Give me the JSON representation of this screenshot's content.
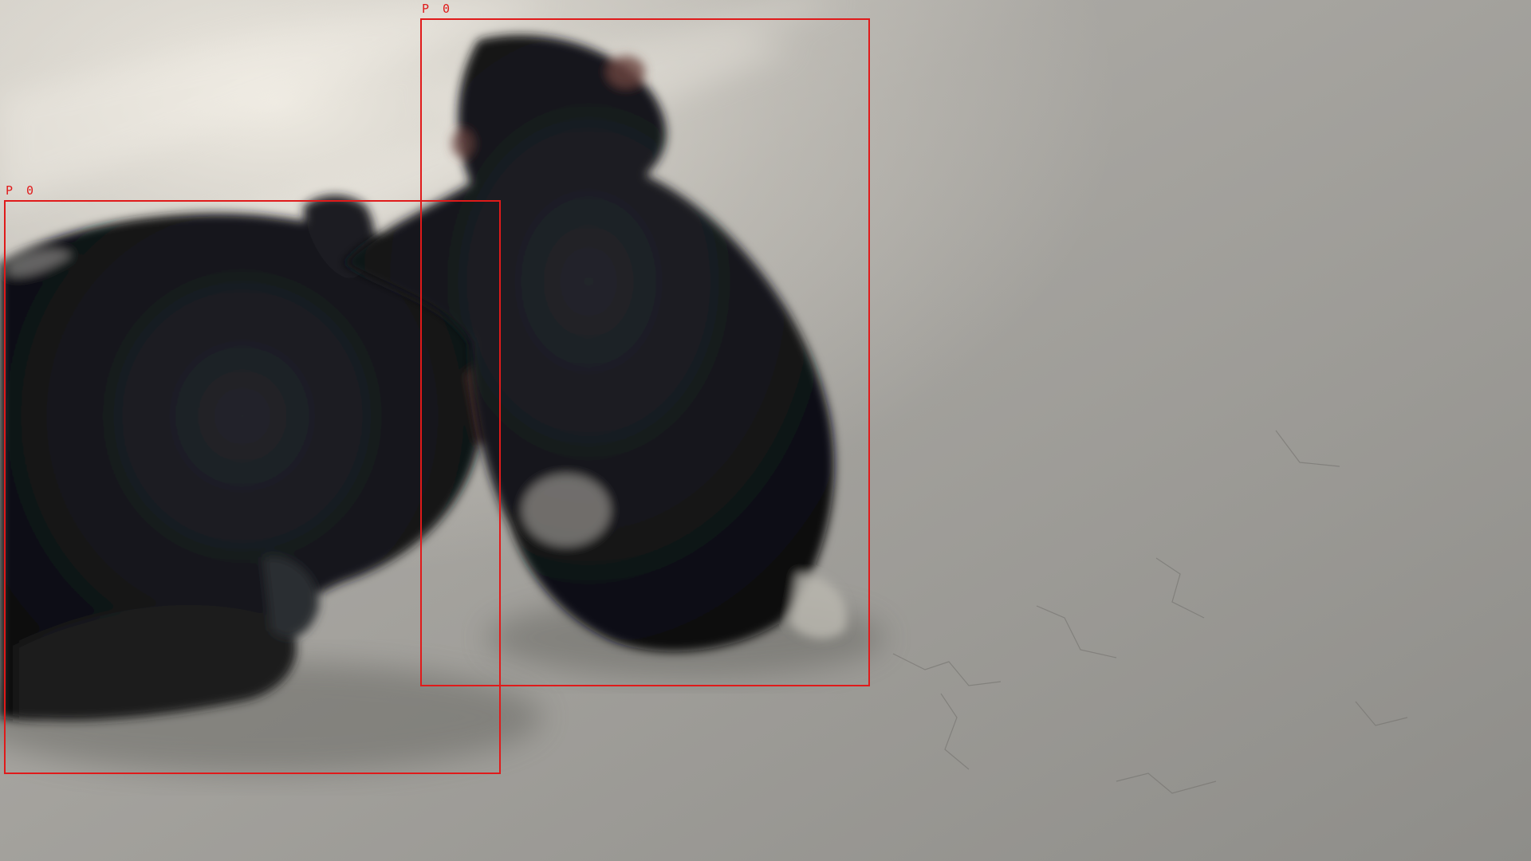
{
  "scene": {
    "subject": "chimpanzee-pair",
    "surface": "concrete-floor"
  },
  "annotations": {
    "box_color": "#e01a1a",
    "boxes": [
      {
        "label": "P 0"
      },
      {
        "label": "P 0"
      }
    ]
  }
}
